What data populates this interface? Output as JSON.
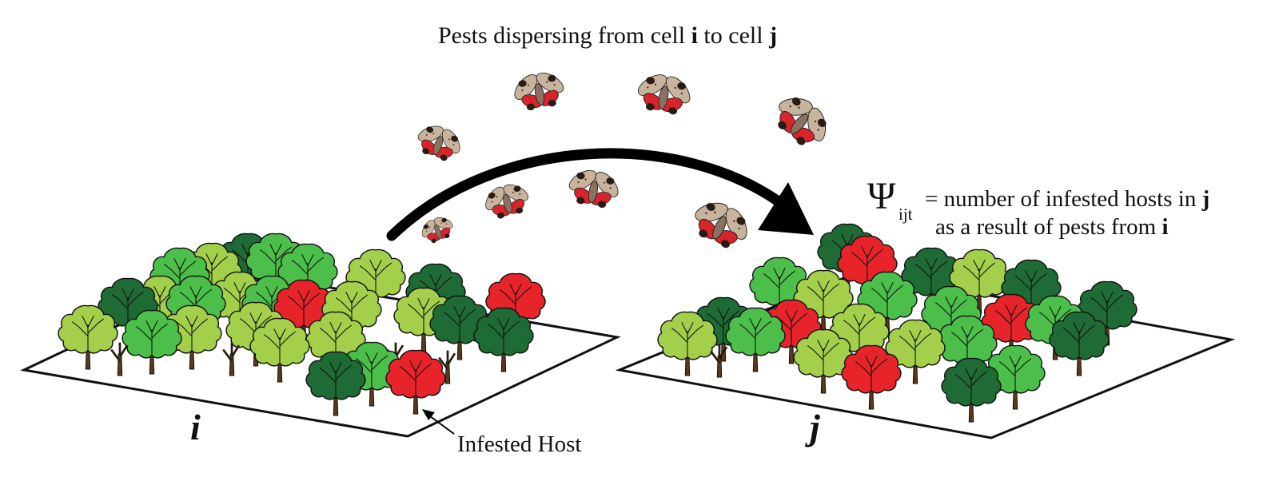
{
  "title": {
    "prefix": "Pests dispersing from cell ",
    "i": "i",
    "middle": " to cell ",
    "j": "j"
  },
  "equation": {
    "symbol": "Ψ",
    "subscript": "ijt",
    "line1_text": "= number of infested hosts in ",
    "line1_bold": "j",
    "line2_text": "as a result of pests from ",
    "line2_bold": "i"
  },
  "cells": {
    "left_label": "i",
    "right_label": "j"
  },
  "annotation": {
    "infested_host": "Infested Host"
  },
  "colors": {
    "tree_dark": "#1f6b35",
    "tree_mid": "#4cbf4a",
    "tree_light": "#a3cf4a",
    "tree_infested": "#e8242b",
    "trunk": "#5a3a1c",
    "moth_wing": "#c8b39c",
    "moth_red": "#d8242b",
    "arrow": "#000000"
  }
}
